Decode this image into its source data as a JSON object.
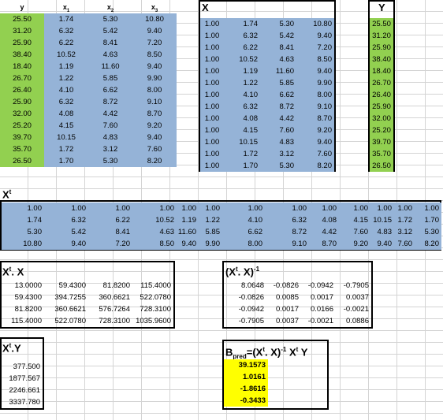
{
  "data_headers": {
    "y": "y",
    "x1": "x",
    "x1_sub": "1",
    "x2": "x",
    "x2_sub": "2",
    "x3": "x",
    "x3_sub": "3"
  },
  "data_rows": [
    [
      "25.50",
      "1.74",
      "5.30",
      "10.80"
    ],
    [
      "31.20",
      "6.32",
      "5.42",
      "9.40"
    ],
    [
      "25.90",
      "6.22",
      "8.41",
      "7.20"
    ],
    [
      "38.40",
      "10.52",
      "4.63",
      "8.50"
    ],
    [
      "18.40",
      "1.19",
      "11.60",
      "9.40"
    ],
    [
      "26.70",
      "1.22",
      "5.85",
      "9.90"
    ],
    [
      "26.40",
      "4.10",
      "6.62",
      "8.00"
    ],
    [
      "25.90",
      "6.32",
      "8.72",
      "9.10"
    ],
    [
      "32.00",
      "4.08",
      "4.42",
      "8.70"
    ],
    [
      "25.20",
      "4.15",
      "7.60",
      "9.20"
    ],
    [
      "39.70",
      "10.15",
      "4.83",
      "9.40"
    ],
    [
      "35.70",
      "1.72",
      "3.12",
      "7.60"
    ],
    [
      "26.50",
      "1.70",
      "5.30",
      "8.20"
    ]
  ],
  "X_matrix": {
    "title": "X",
    "rows": [
      [
        "1.00",
        "1.74",
        "5.30",
        "10.80"
      ],
      [
        "1.00",
        "6.32",
        "5.42",
        "9.40"
      ],
      [
        "1.00",
        "6.22",
        "8.41",
        "7.20"
      ],
      [
        "1.00",
        "10.52",
        "4.63",
        "8.50"
      ],
      [
        "1.00",
        "1.19",
        "11.60",
        "9.40"
      ],
      [
        "1.00",
        "1.22",
        "5.85",
        "9.90"
      ],
      [
        "1.00",
        "4.10",
        "6.62",
        "8.00"
      ],
      [
        "1.00",
        "6.32",
        "8.72",
        "9.10"
      ],
      [
        "1.00",
        "4.08",
        "4.42",
        "8.70"
      ],
      [
        "1.00",
        "4.15",
        "7.60",
        "9.20"
      ],
      [
        "1.00",
        "10.15",
        "4.83",
        "9.40"
      ],
      [
        "1.00",
        "1.72",
        "3.12",
        "7.60"
      ],
      [
        "1.00",
        "1.70",
        "5.30",
        "8.20"
      ]
    ]
  },
  "Y_vector": {
    "title": "Y",
    "values": [
      "25.50",
      "31.20",
      "25.90",
      "38.40",
      "18.40",
      "26.70",
      "26.40",
      "25.90",
      "32.00",
      "25.20",
      "39.70",
      "35.70",
      "26.50"
    ]
  },
  "Xt_matrix": {
    "title": "X",
    "title_sup": "t",
    "rows": [
      [
        "1.00",
        "1.00",
        "1.00",
        "1.00",
        "1.00",
        "1.00",
        "1.00",
        "1.00",
        "1.00",
        "1.00",
        "1.00",
        "1.00",
        "1.00"
      ],
      [
        "1.74",
        "6.32",
        "6.22",
        "10.52",
        "1.19",
        "1.22",
        "4.10",
        "6.32",
        "4.08",
        "4.15",
        "10.15",
        "1.72",
        "1.70"
      ],
      [
        "5.30",
        "5.42",
        "8.41",
        "4.63",
        "11.60",
        "5.85",
        "6.62",
        "8.72",
        "4.42",
        "7.60",
        "4.83",
        "3.12",
        "5.30"
      ],
      [
        "10.80",
        "9.40",
        "7.20",
        "8.50",
        "9.40",
        "9.90",
        "8.00",
        "9.10",
        "8.70",
        "9.20",
        "9.40",
        "7.60",
        "8.20"
      ]
    ]
  },
  "XtX": {
    "title": "X",
    "title_sup": "t",
    "title_rest": ". X",
    "rows": [
      [
        "13.0000",
        "59.4300",
        "81.8200",
        "115.4000"
      ],
      [
        "59.4300",
        "394.7255",
        "360.6621",
        "522.0780"
      ],
      [
        "81.8200",
        "360.6621",
        "576.7264",
        "728.3100"
      ],
      [
        "115.4000",
        "522.0780",
        "728.3100",
        "1035.9600"
      ]
    ]
  },
  "XtX_inv": {
    "title_open": "(X",
    "title_sup": "t",
    "title_mid": ". X)",
    "title_sup2": "-1",
    "rows": [
      [
        "8.0648",
        "-0.0826",
        "-0.0942",
        "-0.7905"
      ],
      [
        "-0.0826",
        "0.0085",
        "0.0017",
        "0.0037"
      ],
      [
        "-0.0942",
        "0.0017",
        "0.0166",
        "-0.0021"
      ],
      [
        "-0.7905",
        "0.0037",
        "-0.0021",
        "0.0886"
      ]
    ]
  },
  "XtY": {
    "title": "X",
    "title_sup": "t",
    "title_rest": ".Y",
    "values": [
      "377.500",
      "1877.567",
      "2246.661",
      "3337.780"
    ]
  },
  "B_pred": {
    "title_b": "B",
    "title_sub": "pred",
    "title_eq": "=(X",
    "title_sup": "t",
    "title_mid": ". X)",
    "title_sup2": "-1",
    "title_x": " X",
    "title_sup3": "t",
    "title_y": " Y",
    "values": [
      "39.1573",
      "1.0161",
      "-1.8616",
      "-0.3433"
    ]
  },
  "colors": {
    "green": "#92d050",
    "blue": "#95b3d7",
    "yellow": "#ffff00",
    "grid": "#d4d4d4"
  }
}
